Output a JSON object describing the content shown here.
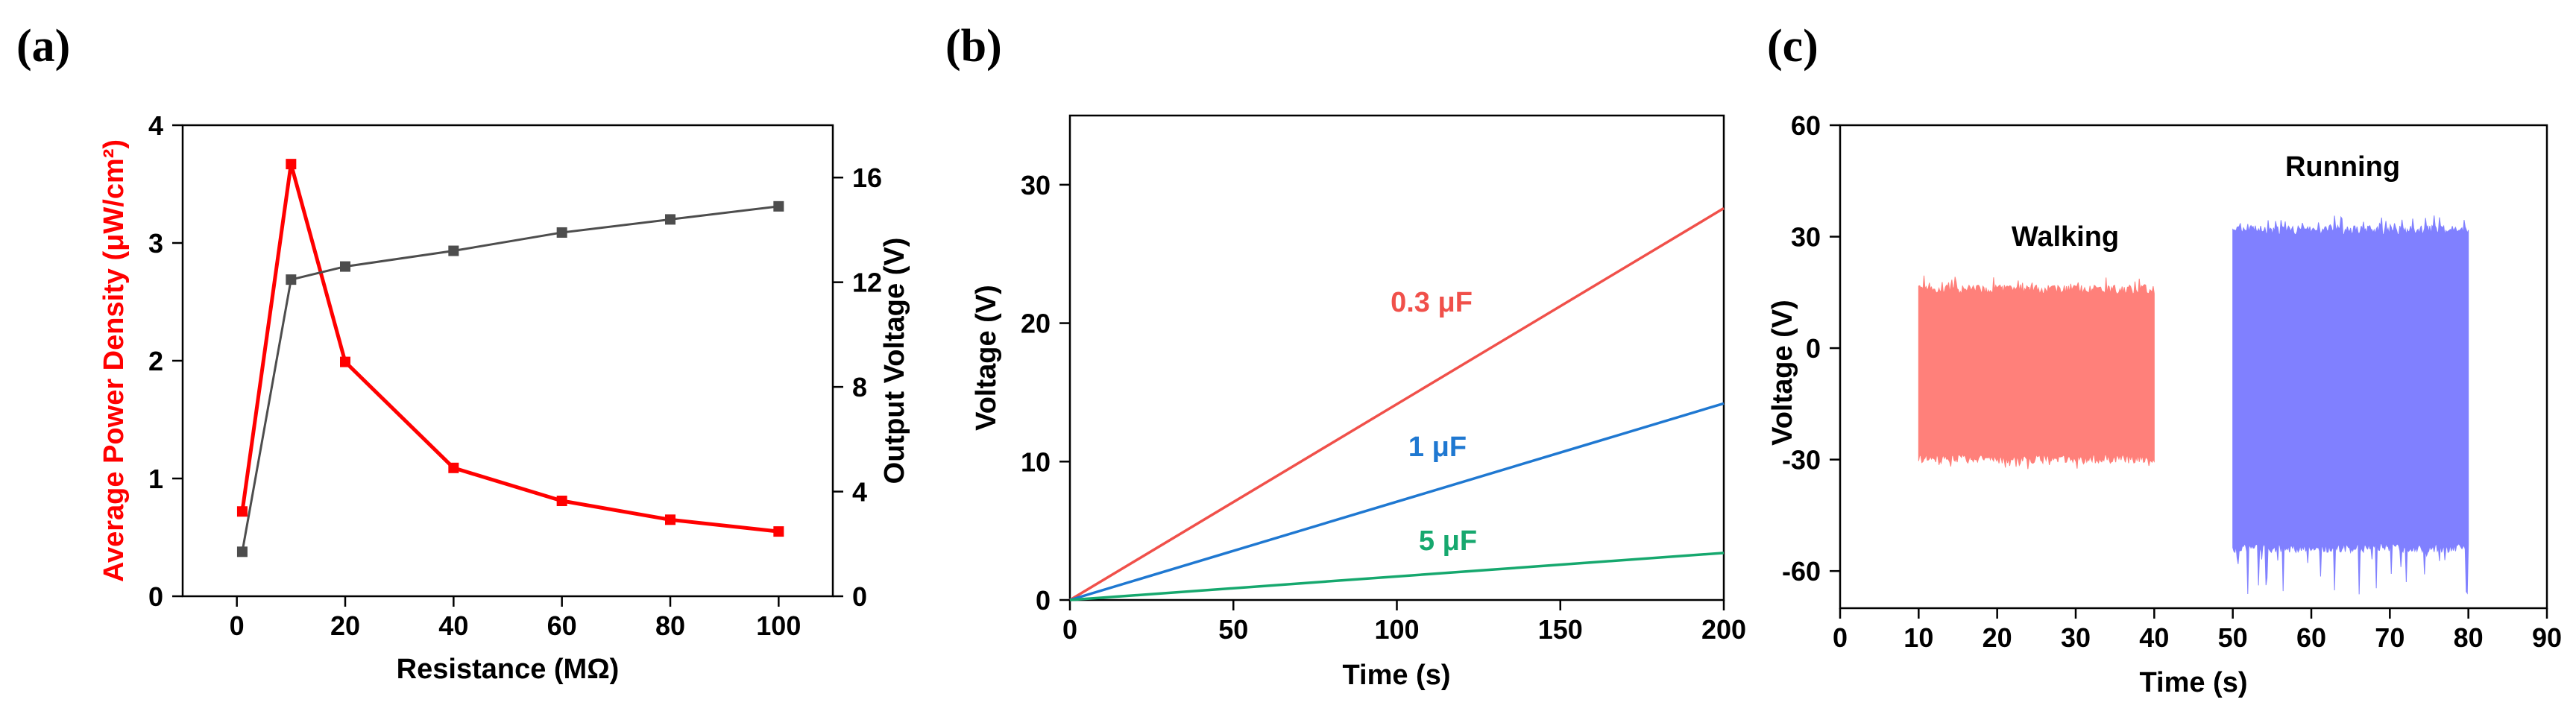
{
  "chart_data": [
    {
      "type": "line",
      "panel": "(a)",
      "xlabel": "Resistance (MΩ)",
      "ylabel_left": "Average Power Density (μW/cm²)",
      "ylabel_right": "Output Voltage (V)",
      "xlim": [
        -10,
        110
      ],
      "ylim_left": [
        0,
        4
      ],
      "ylim_right": [
        0,
        18
      ],
      "xticks": [
        0,
        20,
        40,
        60,
        80,
        100
      ],
      "yticks_left": [
        0,
        1,
        2,
        3,
        4
      ],
      "yticks_right": [
        0,
        4,
        8,
        12,
        16
      ],
      "series": [
        {
          "name": "Average Power Density",
          "axis": "left",
          "color": "#ff0000",
          "marker": "square",
          "x": [
            1,
            10,
            20,
            40,
            60,
            80,
            100
          ],
          "values": [
            0.72,
            3.67,
            1.99,
            1.09,
            0.81,
            0.65,
            0.55
          ]
        },
        {
          "name": "Output Voltage",
          "axis": "right",
          "color": "#4d4d4d",
          "marker": "square",
          "x": [
            1,
            10,
            20,
            40,
            60,
            80,
            100
          ],
          "values": [
            1.7,
            12.1,
            12.6,
            13.2,
            13.9,
            14.4,
            14.9
          ]
        }
      ]
    },
    {
      "type": "line",
      "panel": "(b)",
      "xlabel": "Time (s)",
      "ylabel": "Voltage (V)",
      "xlim": [
        0,
        200
      ],
      "ylim": [
        0,
        35
      ],
      "xticks": [
        0,
        50,
        100,
        150,
        200
      ],
      "yticks": [
        0,
        10,
        20,
        30
      ],
      "series": [
        {
          "name": "0.3 μF",
          "color": "#f0504a",
          "x": [
            0,
            200
          ],
          "values": [
            0,
            28.3
          ]
        },
        {
          "name": "1 μF",
          "color": "#1f78d1",
          "x": [
            0,
            200
          ],
          "values": [
            0,
            14.2
          ]
        },
        {
          "name": "5 μF",
          "color": "#16a86e",
          "x": [
            0,
            200
          ],
          "values": [
            0,
            3.4
          ]
        }
      ],
      "annotations": [
        "0.3 μF",
        "1 μF",
        "5 μF"
      ]
    },
    {
      "type": "area",
      "panel": "(c)",
      "xlabel": "Time (s)",
      "ylabel": "Voltage (V)",
      "xlim": [
        0,
        90
      ],
      "ylim": [
        -70,
        60
      ],
      "xticks": [
        0,
        10,
        20,
        30,
        40,
        50,
        60,
        70,
        80,
        90
      ],
      "yticks": [
        -60,
        -30,
        0,
        30,
        60
      ],
      "series": [
        {
          "name": "Walking",
          "color": "#ff807a",
          "x_range": [
            10,
            40
          ],
          "upper": 17,
          "lower": -31,
          "peak_upper": 20,
          "peak_lower": -34
        },
        {
          "name": "Running",
          "color": "#8080ff",
          "x_range": [
            50,
            80
          ],
          "upper": 33,
          "lower": -55,
          "peak_upper": 37,
          "peak_lower": -68
        }
      ],
      "annotations": [
        "Walking",
        "Running"
      ]
    }
  ]
}
